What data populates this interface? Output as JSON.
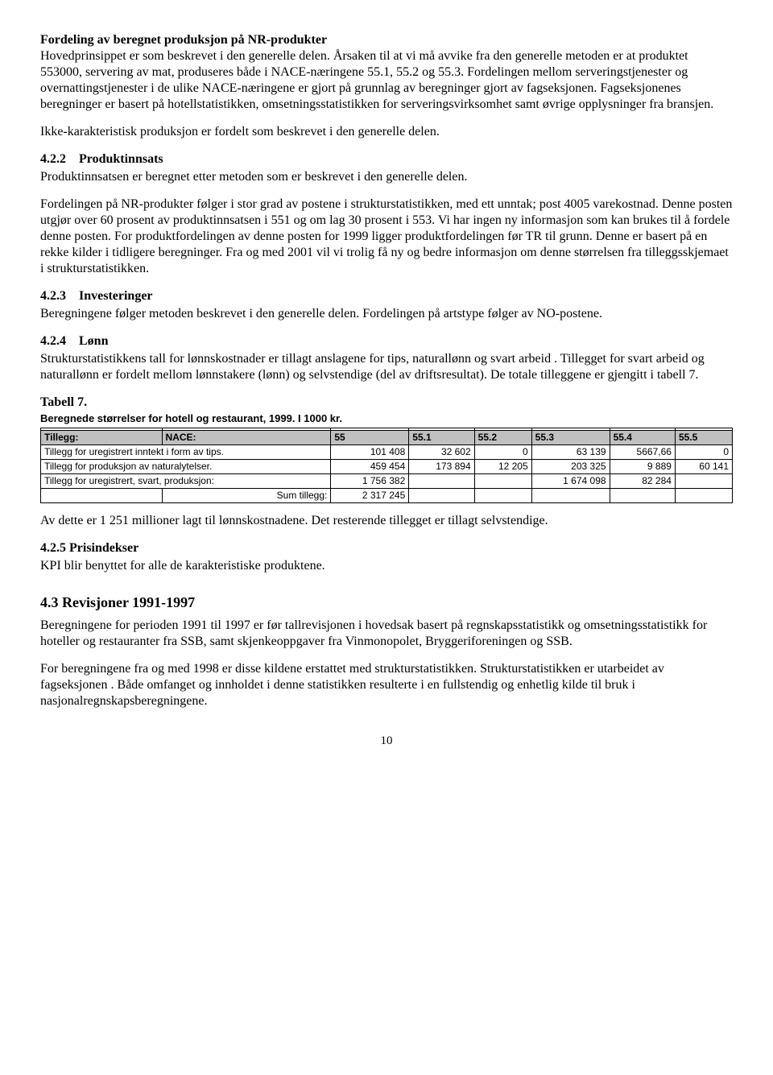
{
  "p1_heading": "Fordeling av beregnet produksjon på NR-produkter",
  "p1_text": "Hovedprinsippet er som beskrevet i den generelle delen. Årsaken til at vi må avvike fra den generelle metoden er at produktet 553000, servering av mat, produseres både i NACE-næringene 55.1, 55.2 og 55.3. Fordelingen mellom serveringstjenester og overnattingstjenester i de ulike NACE-næringene er gjort på grunnlag av beregninger gjort av fagseksjonen. Fagseksjonenes beregninger er basert på hotellstatistikken, omsetningsstatistikken for serveringsvirksomhet samt øvrige opplysninger fra bransjen.",
  "p2": "Ikke-karakteristisk produksjon er fordelt som beskrevet i den generelle delen.",
  "s422_num": "4.2.2",
  "s422_title": "Produktinnsats",
  "s422_p1": "Produktinnsatsen er beregnet etter metoden som er beskrevet i den generelle delen.",
  "s422_p2": "Fordelingen på NR-produkter følger i stor grad av postene i strukturstatistikken, med ett unntak; post 4005 varekostnad. Denne posten utgjør over 60 prosent av produktinnsatsen i 551 og om lag 30 prosent i 553. Vi har ingen ny informasjon som kan brukes til å fordele denne posten. For produktfordelingen av denne posten for 1999 ligger produktfordelingen før TR til grunn. Denne er basert på en rekke kilder i tidligere beregninger. Fra og med 2001 vil vi trolig få ny og bedre informasjon om denne størrelsen fra tilleggsskjemaet i strukturstatistikken.",
  "s423_num": "4.2.3",
  "s423_title": "Investeringer",
  "s423_p1": "Beregningene følger metoden beskrevet i den generelle delen. Fordelingen på artstype følger av NO-postene.",
  "s424_num": "4.2.4",
  "s424_title": "Lønn",
  "s424_p1": "Strukturstatistikkens tall for lønnskostnader er tillagt anslagene for tips, naturallønn og svart arbeid . Tillegget for svart arbeid og naturallønn er fordelt mellom lønnstakere (lønn) og selvstendige (del av driftsresultat). De totale tilleggene er gjengitt i tabell 7.",
  "tabell_label": "Tabell 7.",
  "table_title": "Beregnede størrelser for hotell og restaurant, 1999. I 1000 kr.",
  "table": {
    "hdr_label": "Tillegg:",
    "nace_label": "NACE:",
    "cols": [
      "55",
      "55.1",
      "55.2",
      "55.3",
      "55.4",
      "55.5"
    ],
    "rows": [
      {
        "label": "Tillegg for uregistrert inntekt i form av tips.",
        "v": [
          "101 408",
          "32 602",
          "0",
          "63 139",
          "5667,66",
          "0"
        ]
      },
      {
        "label": "Tillegg for produksjon av naturalytelser.",
        "v": [
          "459 454",
          "173 894",
          "12 205",
          "203 325",
          "9 889",
          "60 141"
        ]
      },
      {
        "label": "Tillegg for uregistrert, svart, produksjon:",
        "v": [
          "1 756 382",
          "",
          "",
          "1 674 098",
          "82 284",
          ""
        ]
      }
    ],
    "sum_label": "Sum tillegg:",
    "sum_value": "2 317 245"
  },
  "after_table": "Av dette er 1 251 millioner lagt til lønnskostnadene. Det resterende tillegget er tillagt selvstendige.",
  "s425_num": "4.2.5 Prisindekser",
  "s425_p1": "KPI blir benyttet for alle de karakteristiske produktene.",
  "s43_heading": "4.3 Revisjoner 1991-1997",
  "s43_p1": "Beregningene for perioden 1991 til 1997 er før tallrevisjonen i hovedsak basert på regnskapsstatistikk og omsetningsstatistikk for hoteller og restauranter fra SSB, samt skjenkeoppgaver fra Vinmonopolet, Bryggeriforeningen og SSB.",
  "s43_p2": "For beregningene fra og med 1998 er disse kildene erstattet med strukturstatistikken. Strukturstatistikken er utarbeidet av fagseksjonen . Både omfanget og innholdet i denne statistikken resulterte i en fullstendig og enhetlig kilde til bruk i nasjonalregnskapsberegningene.",
  "page_number": "10"
}
